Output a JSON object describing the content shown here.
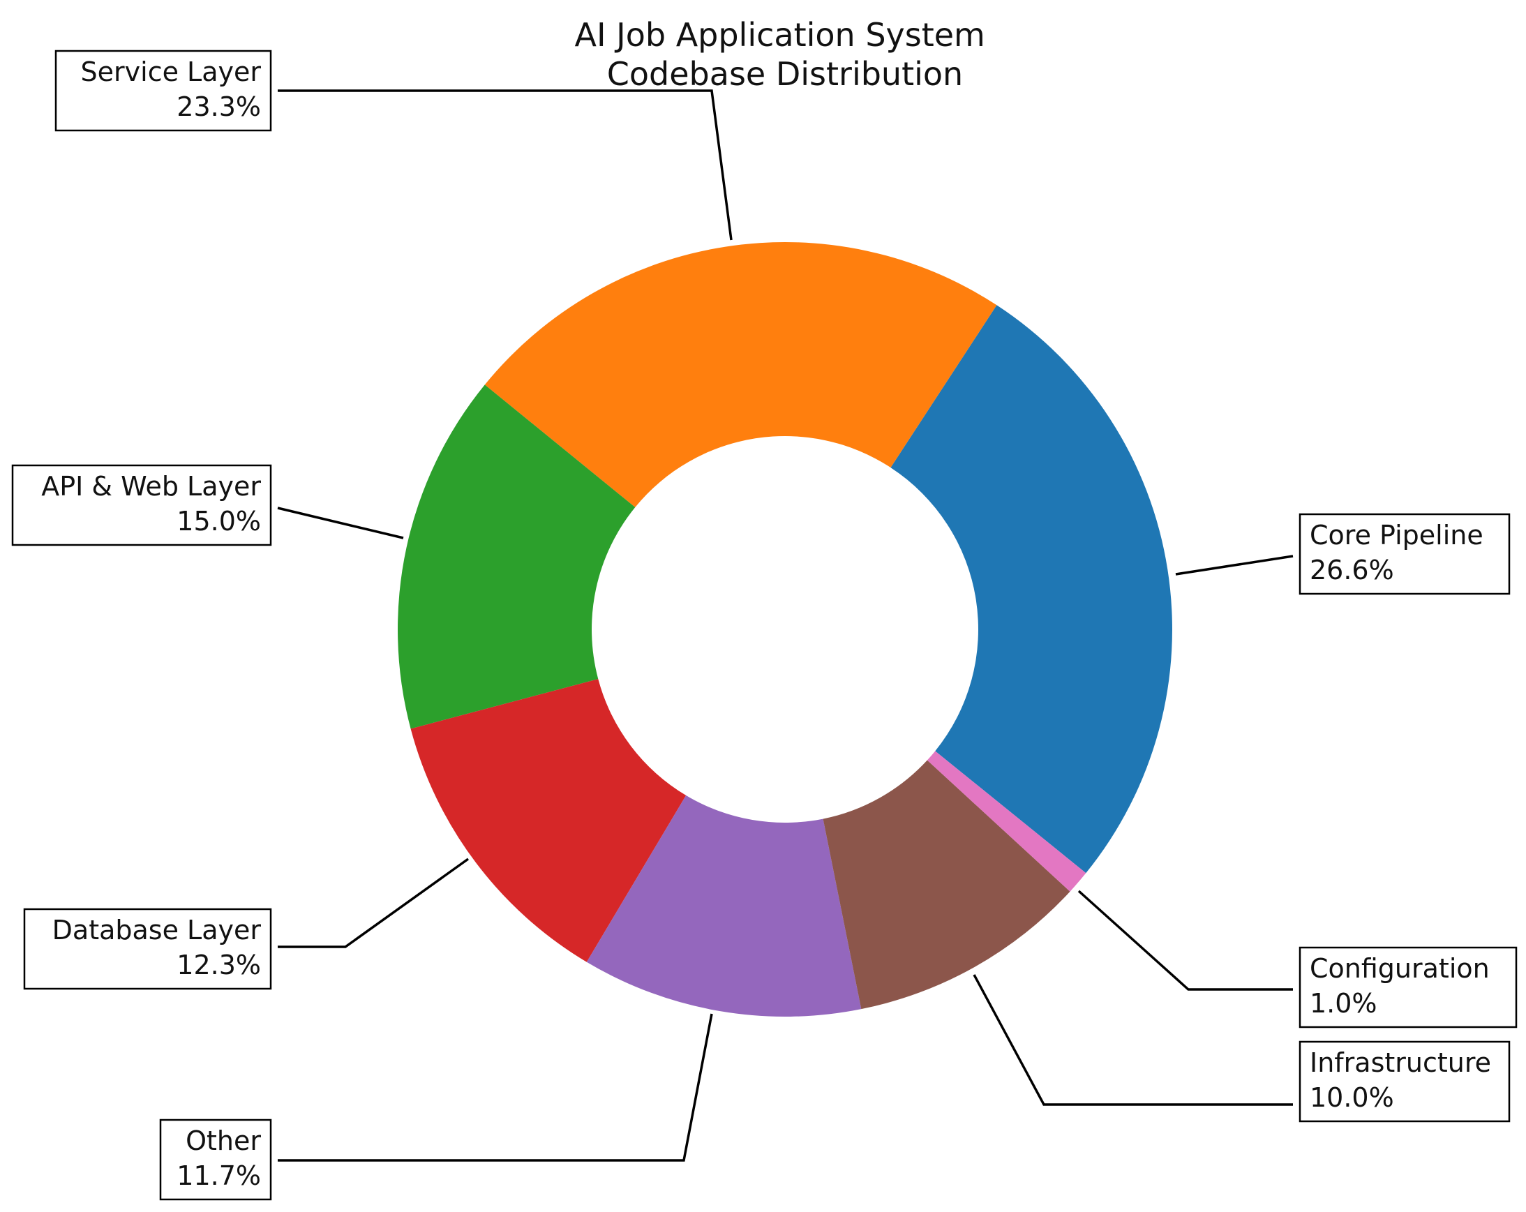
{
  "chart_data": {
    "type": "pie",
    "variant": "donut",
    "title": [
      "AI Job Application System",
      "Codebase Distribution"
    ],
    "slices": [
      {
        "label": "Core Pipeline",
        "value": 26.6,
        "pct_label": "26.6%",
        "color": "#1f77b4"
      },
      {
        "label": "Service Layer",
        "value": 23.3,
        "pct_label": "23.3%",
        "color": "#ff7f0e"
      },
      {
        "label": "API & Web Layer",
        "value": 15.0,
        "pct_label": "15.0%",
        "color": "#2ca02c"
      },
      {
        "label": "Database Layer",
        "value": 12.3,
        "pct_label": "12.3%",
        "color": "#d62728"
      },
      {
        "label": "Other",
        "value": 11.7,
        "pct_label": "11.7%",
        "color": "#9467bd"
      },
      {
        "label": "Infrastructure",
        "value": 10.0,
        "pct_label": "10.0%",
        "color": "#8c564b"
      },
      {
        "label": "Configuration",
        "value": 1.0,
        "pct_label": "1.0%",
        "color": "#e377c2"
      }
    ],
    "start_angle_deg": -39,
    "direction": "counterclockwise",
    "legend": "none"
  }
}
